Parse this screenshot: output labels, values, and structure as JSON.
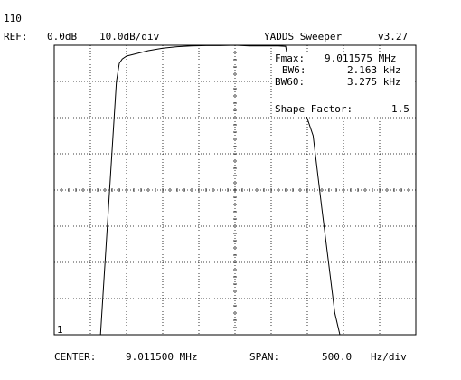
{
  "header": {
    "counter": "110",
    "ref_label": "REF:",
    "ref_value": "0.0dB",
    "scale": "10.0dB/div",
    "app_title": "YADDS Sweeper",
    "version": "v3.27"
  },
  "readout": {
    "fmax_label": "Fmax:",
    "fmax_value": "9.011575 MHz",
    "bw6_label": "BW6:",
    "bw6_value": "2.163 kHz",
    "bw60_label": "BW60:",
    "bw60_value": "3.275 kHz",
    "shape_factor_label": "Shape Factor:",
    "shape_factor_value": "1.5"
  },
  "footer": {
    "center_label": "CENTER:",
    "center_value": "9.011500 MHz",
    "span_label": "SPAN:",
    "span_value": "500.0",
    "span_unit": "Hz/div"
  },
  "trace_marker": "1",
  "colors": {
    "background": "#ffffff",
    "trace": "#000000",
    "grid": "#000000"
  },
  "chart_data": {
    "type": "line",
    "x_divisions": 10,
    "y_divisions": 8,
    "xlim": [
      -2500,
      2500
    ],
    "ylim": [
      -80,
      0
    ],
    "grid": "dotted",
    "series": [
      {
        "x": [
          -2500,
          -1860,
          -1640,
          -1600,
          -1560,
          -1500,
          -1400,
          -1200,
          -1000,
          -800,
          -600,
          -400,
          -200,
          0,
          200,
          400,
          600,
          700,
          740,
          1080,
          1200,
          1380,
          1450,
          1500,
          2500
        ],
        "y": [
          -80,
          -80,
          -10,
          -5,
          -3.8,
          -3,
          -2.5,
          -1.5,
          -0.8,
          -0.4,
          -0.2,
          -0.1,
          -0.1,
          0,
          -0.2,
          -0.2,
          -0.2,
          -0.3,
          -5,
          -25,
          -45,
          -74,
          -80,
          -80,
          -80
        ]
      }
    ]
  }
}
